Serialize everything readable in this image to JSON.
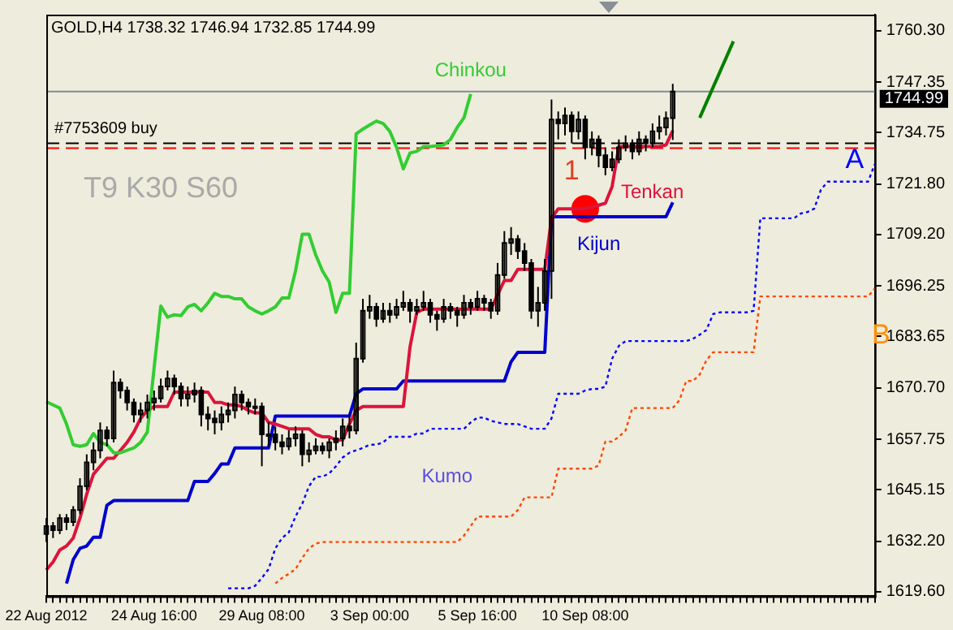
{
  "chart_data": {
    "type": "candlestick",
    "title": "GOLD,H4 1738.32 1746.94 1732.85 1744.99",
    "categories": [
      "22 Aug 2012",
      null,
      null,
      null,
      null,
      null,
      null,
      null,
      null,
      null,
      null,
      null,
      null,
      null,
      null,
      null,
      "24 Aug 16:00",
      null,
      null,
      null,
      null,
      null,
      null,
      null,
      null,
      null,
      null,
      null,
      null,
      null,
      null,
      null,
      "29 Aug 08:00",
      null,
      null,
      null,
      null,
      null,
      null,
      null,
      null,
      null,
      null,
      null,
      null,
      null,
      null,
      null,
      "3 Sep 00:00",
      null,
      null,
      null,
      null,
      null,
      null,
      null,
      null,
      null,
      null,
      null,
      null,
      null,
      null,
      null,
      "5 Sep 16:00",
      null,
      null,
      null,
      null,
      null,
      null,
      null,
      null,
      null,
      null,
      null,
      null,
      null,
      null,
      null,
      "10 Sep 08:00",
      null,
      null,
      null,
      null,
      null,
      null,
      null,
      null,
      null,
      null,
      null,
      null,
      null,
      null,
      null,
      null,
      null,
      null,
      null,
      null,
      null,
      null,
      null,
      null,
      null,
      null,
      null,
      null,
      null,
      null,
      null,
      null,
      null,
      null,
      null,
      null,
      null,
      null,
      null,
      null,
      null,
      null,
      null
    ],
    "ylim": [
      1618.4,
      1764.3
    ],
    "yticks": [
      {
        "value": 1619.6,
        "label": "1619.60"
      },
      {
        "value": 1632.2,
        "label": "1632.20"
      },
      {
        "value": 1645.15,
        "label": "1645.15"
      },
      {
        "value": 1657.75,
        "label": "1657.75"
      },
      {
        "value": 1670.7,
        "label": "1670.70"
      },
      {
        "value": 1683.65,
        "label": "1683.65"
      },
      {
        "value": 1696.25,
        "label": "1696.25"
      },
      {
        "value": 1709.2,
        "label": "1709.20"
      },
      {
        "value": 1721.8,
        "label": "1721.80"
      },
      {
        "value": 1734.75,
        "label": "1734.75"
      },
      {
        "value": 1747.35,
        "label": "1747.35"
      },
      {
        "value": 1760.3,
        "label": "1760.30"
      }
    ],
    "series": [
      {
        "type": "candlestick",
        "color": "#000000",
        "ohlc": [
          [
            1634,
            1638,
            1632,
            1636
          ],
          [
            1636,
            1637,
            1633,
            1635
          ],
          [
            1635,
            1639,
            1634,
            1638
          ],
          [
            1638,
            1639,
            1635,
            1637
          ],
          [
            1637,
            1641,
            1636,
            1640
          ],
          [
            1640,
            1648,
            1639,
            1646
          ],
          [
            1646,
            1654,
            1645,
            1652
          ],
          [
            1652,
            1657,
            1650,
            1655
          ],
          [
            1655,
            1662,
            1653,
            1660
          ],
          [
            1660,
            1661,
            1656,
            1658
          ],
          [
            1658,
            1675,
            1657,
            1672
          ],
          [
            1672,
            1673,
            1668,
            1670
          ],
          [
            1670,
            1671,
            1665,
            1667
          ],
          [
            1667,
            1668,
            1662,
            1664
          ],
          [
            1664,
            1667,
            1662,
            1665
          ],
          [
            1665,
            1669,
            1663,
            1667
          ],
          [
            1667,
            1670,
            1665,
            1668
          ],
          [
            1668,
            1673,
            1667,
            1671
          ],
          [
            1671,
            1675,
            1670,
            1673
          ],
          [
            1673,
            1674,
            1669,
            1671
          ],
          [
            1671,
            1672,
            1666,
            1668
          ],
          [
            1668,
            1671,
            1666,
            1669
          ],
          [
            1669,
            1672,
            1667,
            1670
          ],
          [
            1670,
            1671,
            1661,
            1664
          ],
          [
            1664,
            1666,
            1660,
            1663
          ],
          [
            1663,
            1665,
            1659,
            1662
          ],
          [
            1662,
            1666,
            1660,
            1664
          ],
          [
            1664,
            1667,
            1662,
            1665
          ],
          [
            1665,
            1671,
            1663,
            1669
          ],
          [
            1669,
            1670,
            1665,
            1667
          ],
          [
            1667,
            1668,
            1664,
            1666
          ],
          [
            1666,
            1668,
            1664,
            1666
          ],
          [
            1666,
            1667,
            1651,
            1659
          ],
          [
            1659,
            1662,
            1656,
            1659
          ],
          [
            1659,
            1661,
            1655,
            1657
          ],
          [
            1657,
            1659,
            1654,
            1656
          ],
          [
            1656,
            1660,
            1655,
            1658
          ],
          [
            1658,
            1661,
            1656,
            1659
          ],
          [
            1659,
            1660,
            1651,
            1654
          ],
          [
            1654,
            1657,
            1652,
            1655
          ],
          [
            1655,
            1658,
            1654,
            1656
          ],
          [
            1656,
            1657,
            1654,
            1655
          ],
          [
            1655,
            1658,
            1653,
            1657
          ],
          [
            1657,
            1660,
            1655,
            1658
          ],
          [
            1658,
            1663,
            1656,
            1661
          ],
          [
            1661,
            1664,
            1658,
            1660
          ],
          [
            1660,
            1682,
            1659,
            1678
          ],
          [
            1678,
            1693,
            1677,
            1690
          ],
          [
            1690,
            1694,
            1688,
            1691
          ],
          [
            1691,
            1692,
            1686,
            1688
          ],
          [
            1688,
            1692,
            1687,
            1690
          ],
          [
            1690,
            1692,
            1687,
            1689
          ],
          [
            1689,
            1693,
            1688,
            1691
          ],
          [
            1691,
            1695,
            1690,
            1692
          ],
          [
            1692,
            1693,
            1687,
            1690
          ],
          [
            1690,
            1693,
            1689,
            1691
          ],
          [
            1691,
            1695,
            1690,
            1692
          ],
          [
            1692,
            1693,
            1687,
            1689
          ],
          [
            1689,
            1690,
            1685,
            1688
          ],
          [
            1688,
            1693,
            1687,
            1691
          ],
          [
            1691,
            1692,
            1688,
            1690
          ],
          [
            1690,
            1691,
            1686,
            1689
          ],
          [
            1689,
            1694,
            1688,
            1692
          ],
          [
            1692,
            1693,
            1689,
            1691
          ],
          [
            1691,
            1695,
            1690,
            1693
          ],
          [
            1693,
            1694,
            1690,
            1692
          ],
          [
            1692,
            1693,
            1688,
            1690
          ],
          [
            1690,
            1702,
            1689,
            1699
          ],
          [
            1699,
            1710,
            1698,
            1707
          ],
          [
            1707,
            1711,
            1704,
            1708
          ],
          [
            1708,
            1709,
            1703,
            1705
          ],
          [
            1705,
            1707,
            1700,
            1702
          ],
          [
            1702,
            1703,
            1688,
            1690
          ],
          [
            1690,
            1696,
            1686,
            1692
          ],
          [
            1692,
            1703,
            1690,
            1700
          ],
          [
            1700,
            1743,
            1693,
            1738
          ],
          [
            1738,
            1740,
            1733,
            1737
          ],
          [
            1737,
            1741,
            1734,
            1739
          ],
          [
            1739,
            1740,
            1732,
            1735
          ],
          [
            1735,
            1740,
            1733,
            1738
          ],
          [
            1738,
            1739,
            1728,
            1731
          ],
          [
            1731,
            1735,
            1729,
            1733
          ],
          [
            1733,
            1734,
            1726,
            1729
          ],
          [
            1729,
            1731,
            1724,
            1726
          ],
          [
            1726,
            1730,
            1725,
            1728
          ],
          [
            1728,
            1733,
            1727,
            1731
          ],
          [
            1731,
            1734,
            1730,
            1732
          ],
          [
            1732,
            1733,
            1728,
            1730
          ],
          [
            1730,
            1735,
            1729,
            1733
          ],
          [
            1733,
            1734,
            1730,
            1732
          ],
          [
            1732,
            1737,
            1731,
            1735
          ],
          [
            1735,
            1739,
            1733,
            1736
          ],
          [
            1736,
            1740,
            1734,
            1738.32
          ],
          [
            1738.32,
            1746.94,
            1732.85,
            1744.99
          ],
          null,
          null,
          null,
          null,
          null,
          null,
          null,
          null,
          null,
          null,
          null,
          null,
          null,
          null,
          null,
          null,
          null,
          null,
          null,
          null,
          null,
          null,
          null,
          null,
          null,
          null,
          null,
          null,
          null,
          null
        ]
      },
      {
        "type": "line",
        "name": "Chinkou",
        "color": "#32cd32",
        "values": [
          1667.2,
          1666.4,
          1665.6,
          1661.6,
          1656.4,
          1656,
          1656.4,
          1659.2,
          1657,
          1656.4,
          1654.4,
          1654.4,
          1655,
          1655.6,
          1657,
          1659.6,
          1675.6,
          1691.2,
          1688.4,
          1689,
          1688.8,
          1691,
          1691.6,
          1690,
          1692,
          1694.4,
          1693.6,
          1693.6,
          1693,
          1693,
          1691,
          1690,
          1689.2,
          1690,
          1691,
          1693.2,
          1693.2,
          1700,
          1709.2,
          1709.2,
          1704,
          1700,
          1697.2,
          1689.6,
          1694.4,
          1694.4,
          1734.4,
          1735.6,
          1736.6,
          1737.6,
          1737,
          1735,
          1731,
          1725.6,
          1729.6,
          1730,
          1731.2,
          1731.2,
          1731.4,
          1731.6,
          1733,
          1736,
          1738.4,
          1744.4,
          null,
          null,
          null,
          null,
          null,
          null,
          null,
          null,
          null,
          null,
          null,
          null,
          null,
          null,
          null,
          null,
          null,
          null,
          null,
          null,
          null,
          null,
          null,
          null,
          null,
          null,
          null,
          null,
          null,
          null,
          null,
          null,
          null,
          null,
          null,
          null,
          null,
          null,
          null,
          null,
          null,
          null,
          null,
          null,
          null,
          null,
          null,
          null,
          null,
          null,
          null,
          null,
          null,
          null,
          null,
          null,
          null,
          null,
          null,
          null
        ]
      },
      {
        "type": "line",
        "name": "Tenkan",
        "color": "#dc143c",
        "values": [
          1625,
          1627,
          1630,
          1631,
          1633,
          1638,
          1644,
          1649,
          1651,
          1653,
          1653,
          1655,
          1657,
          1659.6,
          1663,
          1665,
          1666,
          1666,
          1666,
          1669.6,
          1669.6,
          1669.6,
          1669.6,
          1669.6,
          1669.6,
          1667,
          1667,
          1666.4,
          1666.4,
          1666,
          1665,
          1664.4,
          1664.4,
          1662,
          1661.6,
          1661,
          1660.4,
          1660.4,
          1660.4,
          1660.4,
          1659,
          1658.4,
          1658.4,
          1657.6,
          1657.6,
          1661.6,
          1665,
          1666,
          1666,
          1666,
          1666,
          1666,
          1666,
          1666,
          1681,
          1689.6,
          1690.4,
          1690.4,
          1690.4,
          1690.4,
          1690.4,
          1690.4,
          1690.4,
          1690.4,
          1690.4,
          1690.4,
          1690.4,
          1694,
          1697.6,
          1697.6,
          1700.4,
          1700.4,
          1700.4,
          1700.4,
          1700.4,
          1713.2,
          1715.6,
          1715.6,
          1715.6,
          1715.6,
          1715.6,
          1716,
          1716.5,
          1717,
          1721.2,
          1731.2,
          1731.2,
          1731.2,
          1731.2,
          1731.2,
          1731.2,
          1731.2,
          1731.6,
          1735.2,
          null,
          null,
          null,
          null,
          null,
          null,
          null,
          null,
          null,
          null,
          null,
          null,
          null,
          null,
          null,
          null,
          null,
          null,
          null,
          null,
          null,
          null,
          null,
          null,
          null,
          null,
          null,
          null,
          null,
          null
        ]
      },
      {
        "type": "line",
        "name": "Kijun",
        "color": "#0000cd",
        "values": [
          null,
          null,
          null,
          1621.6,
          1627.6,
          1630.4,
          1631,
          1633.2,
          1633.2,
          1641.2,
          1642.4,
          1642.4,
          1642.4,
          1642.4,
          1642.4,
          1642.4,
          1642.4,
          1642.4,
          1642.4,
          1642.4,
          1642.4,
          1642.4,
          1647.2,
          1647.2,
          1647.2,
          1649.2,
          1651.6,
          1651.6,
          1655.6,
          1655.6,
          1655.6,
          1655.6,
          1655.6,
          1655.6,
          1663.6,
          1663.6,
          1663.6,
          1663.6,
          1663.6,
          1663.6,
          1663.6,
          1663.6,
          1663.6,
          1663.6,
          1663.6,
          1663.6,
          1669.2,
          1670.4,
          1670.4,
          1670.4,
          1670.4,
          1670.4,
          1670.4,
          1672.4,
          1672.4,
          1672.4,
          1672.4,
          1672.4,
          1672.4,
          1672.4,
          1672.4,
          1672.4,
          1672.4,
          1672.4,
          1672.4,
          1672.4,
          1672.4,
          1672.4,
          1672.4,
          1677.2,
          1679.6,
          1679.6,
          1679.6,
          1679.6,
          1679.6,
          1713.6,
          1713.6,
          1713.6,
          1713.6,
          1713.6,
          1713.6,
          1713.6,
          1713.6,
          1713.6,
          1713.6,
          1713.6,
          1713.6,
          1713.6,
          1713.6,
          1713.6,
          1713.6,
          1713.6,
          1713.6,
          1717.2,
          null,
          null,
          null,
          null,
          null,
          null,
          null,
          null,
          null,
          null,
          null,
          null,
          null,
          null,
          null,
          null,
          null,
          null,
          null,
          null,
          null,
          null,
          null,
          null,
          null,
          null,
          null,
          null,
          null,
          null
        ]
      },
      {
        "type": "line",
        "name": "A",
        "color": "#0000ff",
        "line_style": "dotted",
        "values": [
          null,
          null,
          null,
          null,
          null,
          null,
          null,
          null,
          null,
          null,
          null,
          null,
          null,
          null,
          null,
          null,
          null,
          null,
          null,
          null,
          null,
          null,
          null,
          null,
          null,
          null,
          null,
          1620.4,
          1620.4,
          1620.4,
          1620.4,
          1621,
          1623,
          1625.2,
          1630.4,
          1633,
          1634.4,
          1638.4,
          1641.6,
          1646,
          1648.4,
          1648.4,
          1649.2,
          1651,
          1653.2,
          1654.4,
          1655,
          1655.6,
          1656.4,
          1656.4,
          1657,
          1658.4,
          1658.4,
          1658.4,
          1658.4,
          1659.2,
          1659.2,
          1660.4,
          1660.4,
          1660.4,
          1660.4,
          1660.4,
          1660.4,
          1662,
          1663.2,
          1663.2,
          1662.4,
          1662,
          1661.6,
          1661.6,
          1661.6,
          1661,
          1660.4,
          1660.4,
          1660.4,
          1663,
          1669.2,
          1669.2,
          1669.2,
          1669.2,
          1670,
          1670.4,
          1670.4,
          1671,
          1678,
          1681.2,
          1682.4,
          1682.4,
          1682.4,
          1682.4,
          1682.4,
          1682.4,
          1682.4,
          1682.4,
          1682.4,
          1682.4,
          1683,
          1684,
          1685.2,
          1689.2,
          1689.6,
          1689.6,
          1689.6,
          1689.6,
          1689.6,
          1690,
          1713.2,
          1713.2,
          1713.2,
          1713.2,
          1713.2,
          1713.2,
          1714.4,
          1714.8,
          1715.6,
          1720.4,
          1722.4,
          1722.4,
          1722.4,
          1722.4,
          1722.4,
          1722.4,
          1722.4,
          1726.8
        ]
      },
      {
        "type": "line",
        "name": "B",
        "color": "#ff4500",
        "line_style": "dotted",
        "values": [
          null,
          null,
          null,
          null,
          null,
          null,
          null,
          null,
          null,
          null,
          null,
          null,
          null,
          null,
          null,
          null,
          null,
          null,
          null,
          null,
          null,
          null,
          null,
          null,
          null,
          null,
          null,
          null,
          null,
          null,
          null,
          null,
          null,
          null,
          1621.6,
          1623,
          1624,
          1625.2,
          1628,
          1630.4,
          1631.6,
          1632,
          1632,
          1632,
          1632,
          1632,
          1632,
          1632,
          1632,
          1632,
          1632,
          1632,
          1632,
          1632,
          1632,
          1632,
          1632,
          1632,
          1632,
          1632,
          1632,
          1632,
          1633.6,
          1636,
          1638.4,
          1638.4,
          1638.4,
          1638.4,
          1638.4,
          1638.4,
          1640,
          1643.2,
          1643.2,
          1643.2,
          1643.2,
          1643.2,
          1650.4,
          1650.4,
          1650.4,
          1650.4,
          1650.4,
          1650.4,
          1651.2,
          1657.2,
          1657.2,
          1658.4,
          1660,
          1665.6,
          1665.6,
          1665.6,
          1665.6,
          1665.6,
          1665.6,
          1665.6,
          1667.6,
          1672.4,
          1672.4,
          1674,
          1677.6,
          1679.6,
          1679.6,
          1679.6,
          1679.6,
          1679.6,
          1679.6,
          1679.6,
          1693.6,
          1693.6,
          1693.6,
          1693.6,
          1693.6,
          1693.6,
          1693.6,
          1693.6,
          1693.6,
          1693.6,
          1693.6,
          1693.6,
          1693.6,
          1693.6,
          1693.6,
          1693.6,
          1693.6,
          1695.6
        ]
      },
      {
        "type": "line",
        "color": "#008000",
        "values": [
          null,
          null,
          null,
          null,
          null,
          null,
          null,
          null,
          null,
          null,
          null,
          null,
          null,
          null,
          null,
          null,
          null,
          null,
          null,
          null,
          null,
          null,
          null,
          null,
          null,
          null,
          null,
          null,
          null,
          null,
          null,
          null,
          null,
          null,
          null,
          null,
          null,
          null,
          null,
          null,
          null,
          null,
          null,
          null,
          null,
          null,
          null,
          null,
          null,
          null,
          null,
          null,
          null,
          null,
          null,
          null,
          null,
          null,
          null,
          null,
          null,
          null,
          null,
          null,
          null,
          null,
          null,
          null,
          null,
          null,
          null,
          null,
          null,
          null,
          null,
          null,
          null,
          null,
          null,
          null,
          null,
          null,
          null,
          null,
          null,
          null,
          null,
          null,
          null,
          null,
          null,
          null,
          null,
          null,
          null,
          null,
          null,
          1738.4,
          null,
          null,
          null,
          null,
          1757.6,
          null,
          null,
          null,
          null,
          null,
          null,
          null,
          null,
          null,
          null,
          null,
          null,
          null,
          null,
          null,
          null,
          null,
          null,
          null,
          null,
          null
        ]
      },
      {
        "type": "scatter",
        "color": "#ff0000",
        "marker": "circle",
        "values": [
          null,
          null,
          null,
          null,
          null,
          null,
          null,
          null,
          null,
          null,
          null,
          null,
          null,
          null,
          null,
          null,
          null,
          null,
          null,
          null,
          null,
          null,
          null,
          null,
          null,
          null,
          null,
          null,
          null,
          null,
          null,
          null,
          null,
          null,
          null,
          null,
          null,
          null,
          null,
          null,
          null,
          null,
          null,
          null,
          null,
          null,
          null,
          null,
          null,
          null,
          null,
          null,
          null,
          null,
          null,
          null,
          null,
          null,
          null,
          null,
          null,
          null,
          null,
          null,
          null,
          null,
          null,
          null,
          null,
          null,
          null,
          null,
          null,
          null,
          null,
          null,
          null,
          null,
          null,
          null,
          1715.6,
          null,
          null,
          null,
          null,
          null,
          null,
          null,
          null,
          null,
          null,
          null,
          null,
          null,
          null,
          null,
          null,
          null,
          null,
          null,
          null,
          null,
          null,
          null,
          null,
          null,
          null,
          null,
          null,
          null,
          null,
          null,
          null,
          null,
          null,
          null,
          null,
          null,
          null,
          null,
          null,
          null,
          null,
          null
        ]
      }
    ],
    "ref_lines": [
      {
        "axis": "y",
        "value": 1744.99,
        "label": "1744.99",
        "color": "#7f8c99",
        "line_style": "solid"
      },
      {
        "axis": "y",
        "value": 1732,
        "label": "#7753609 buy",
        "color": "#000000",
        "line_style": "dashed"
      },
      {
        "axis": "y",
        "value": 1730.8,
        "color": "#ff0000",
        "line_style": "dashed"
      }
    ],
    "annotations": [
      "T9 K30 S60",
      "Kumo",
      "1"
    ],
    "grid": false,
    "legend": false,
    "marker": "none"
  }
}
